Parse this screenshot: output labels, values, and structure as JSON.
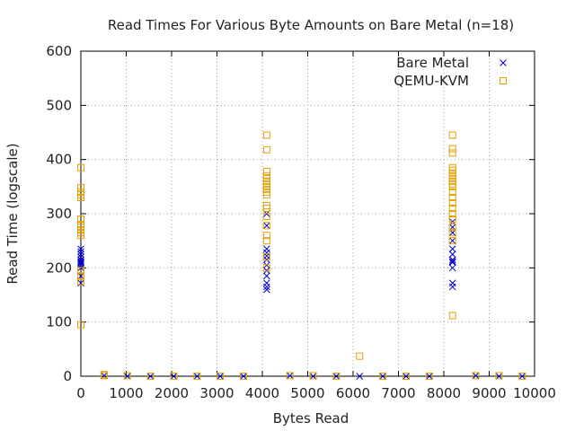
{
  "chart_data": {
    "type": "scatter",
    "title": "Read Times For Various Byte Amounts on Bare Metal (n=18)",
    "xlabel": "Bytes Read",
    "ylabel": "Read Time (logscale)",
    "xlim": [
      0,
      10000
    ],
    "ylim": [
      0,
      600
    ],
    "xticks": [
      0,
      1000,
      2000,
      3000,
      4000,
      5000,
      6000,
      7000,
      8000,
      9000,
      10000
    ],
    "yticks": [
      0,
      100,
      200,
      300,
      400,
      500,
      600
    ],
    "grid": true,
    "legend": "top-right",
    "series": [
      {
        "name": "Bare Metal",
        "marker": "x",
        "color": "#0000cc",
        "points": [
          [
            0,
            172
          ],
          [
            0,
            185
          ],
          [
            0,
            200
          ],
          [
            0,
            205
          ],
          [
            0,
            208
          ],
          [
            0,
            210
          ],
          [
            0,
            212
          ],
          [
            0,
            215
          ],
          [
            0,
            220
          ],
          [
            0,
            225
          ],
          [
            0,
            230
          ],
          [
            0,
            235
          ],
          [
            512,
            1
          ],
          [
            1024,
            0
          ],
          [
            1536,
            0
          ],
          [
            2048,
            0
          ],
          [
            2560,
            0
          ],
          [
            3072,
            0
          ],
          [
            3584,
            0
          ],
          [
            4096,
            160
          ],
          [
            4096,
            165
          ],
          [
            4096,
            172
          ],
          [
            4096,
            185
          ],
          [
            4096,
            195
          ],
          [
            4096,
            205
          ],
          [
            4096,
            215
          ],
          [
            4096,
            222
          ],
          [
            4096,
            228
          ],
          [
            4096,
            235
          ],
          [
            4096,
            278
          ],
          [
            4096,
            300
          ],
          [
            4608,
            1
          ],
          [
            5120,
            0
          ],
          [
            5632,
            0
          ],
          [
            6144,
            0
          ],
          [
            6656,
            0
          ],
          [
            7168,
            0
          ],
          [
            7680,
            0
          ],
          [
            8192,
            165
          ],
          [
            8192,
            172
          ],
          [
            8192,
            200
          ],
          [
            8192,
            210
          ],
          [
            8192,
            212
          ],
          [
            8192,
            215
          ],
          [
            8192,
            225
          ],
          [
            8192,
            235
          ],
          [
            8192,
            250
          ],
          [
            8192,
            265
          ],
          [
            8192,
            275
          ],
          [
            8192,
            285
          ],
          [
            8704,
            1
          ],
          [
            9216,
            0
          ],
          [
            9728,
            0
          ]
        ]
      },
      {
        "name": "QEMU-KVM",
        "marker": "square",
        "color": "#e69f00",
        "points": [
          [
            0,
            95
          ],
          [
            0,
            175
          ],
          [
            0,
            185
          ],
          [
            0,
            195
          ],
          [
            0,
            260
          ],
          [
            0,
            265
          ],
          [
            0,
            270
          ],
          [
            0,
            275
          ],
          [
            0,
            280
          ],
          [
            0,
            290
          ],
          [
            0,
            330
          ],
          [
            0,
            335
          ],
          [
            0,
            340
          ],
          [
            0,
            348
          ],
          [
            0,
            385
          ],
          [
            512,
            1
          ],
          [
            512,
            3
          ],
          [
            1024,
            1
          ],
          [
            1536,
            0
          ],
          [
            2048,
            0
          ],
          [
            2560,
            0
          ],
          [
            3072,
            0
          ],
          [
            3584,
            0
          ],
          [
            4096,
            200
          ],
          [
            4096,
            220
          ],
          [
            4096,
            250
          ],
          [
            4096,
            260
          ],
          [
            4096,
            278
          ],
          [
            4096,
            295
          ],
          [
            4096,
            310
          ],
          [
            4096,
            315
          ],
          [
            4096,
            335
          ],
          [
            4096,
            340
          ],
          [
            4096,
            345
          ],
          [
            4096,
            350
          ],
          [
            4096,
            355
          ],
          [
            4096,
            360
          ],
          [
            4096,
            365
          ],
          [
            4096,
            370
          ],
          [
            4096,
            378
          ],
          [
            4096,
            418
          ],
          [
            4096,
            445
          ],
          [
            4608,
            1
          ],
          [
            5120,
            1
          ],
          [
            5632,
            0
          ],
          [
            6144,
            37
          ],
          [
            6656,
            0
          ],
          [
            7168,
            0
          ],
          [
            7680,
            0
          ],
          [
            8192,
            112
          ],
          [
            8192,
            250
          ],
          [
            8192,
            265
          ],
          [
            8192,
            275
          ],
          [
            8192,
            290
          ],
          [
            8192,
            300
          ],
          [
            8192,
            310
          ],
          [
            8192,
            320
          ],
          [
            8192,
            330
          ],
          [
            8192,
            340
          ],
          [
            8192,
            350
          ],
          [
            8192,
            355
          ],
          [
            8192,
            360
          ],
          [
            8192,
            365
          ],
          [
            8192,
            370
          ],
          [
            8192,
            375
          ],
          [
            8192,
            380
          ],
          [
            8192,
            385
          ],
          [
            8192,
            412
          ],
          [
            8192,
            420
          ],
          [
            8192,
            445
          ],
          [
            8704,
            1
          ],
          [
            9216,
            1
          ],
          [
            9728,
            0
          ]
        ]
      }
    ]
  }
}
